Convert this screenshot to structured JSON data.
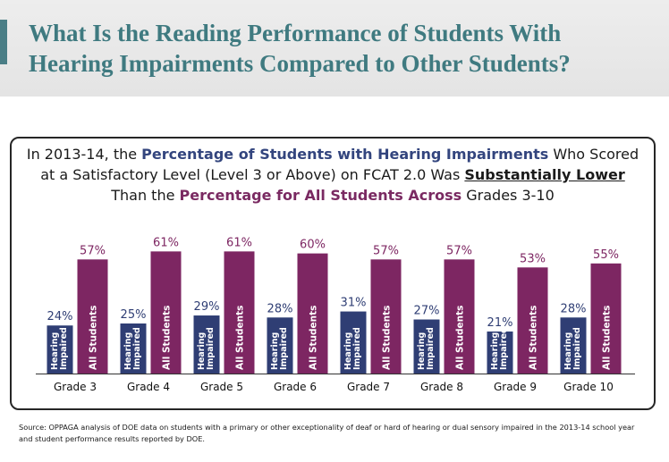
{
  "header": {
    "title_line1": "What Is the Reading Performance of Students With",
    "title_line2": "Hearing Impairments Compared to Other Students?"
  },
  "colors": {
    "hearing_impaired": "#2f3e74",
    "all_students": "#7d2662",
    "title": "#3f7a80"
  },
  "chart_data": {
    "type": "bar",
    "subtitle": {
      "line1_a": "In 2013-14, the ",
      "line1_b": "Percentage of Students with Hearing Impairments",
      "line1_c": " Who Scored",
      "line2_a": "at a Satisfactory Level (Level 3 or Above) on FCAT 2.0 Was ",
      "line2_b": "Substantially Lower",
      "line3_a": "Than the ",
      "line3_b": "Percentage for All Students Across",
      "line3_c": " Grades 3-10"
    },
    "categories": [
      "Grade 3",
      "Grade 4",
      "Grade 5",
      "Grade 6",
      "Grade 7",
      "Grade 8",
      "Grade 9",
      "Grade 10"
    ],
    "series": [
      {
        "name": "Hearing Impaired",
        "label_line1": "Hearing",
        "label_line2": "Impaired",
        "values": [
          24,
          25,
          29,
          28,
          31,
          27,
          21,
          28
        ],
        "value_labels": [
          "24%",
          "25%",
          "29%",
          "28%",
          "31%",
          "27%",
          "21%",
          "28%"
        ]
      },
      {
        "name": "All Students",
        "values": [
          57,
          61,
          61,
          60,
          57,
          57,
          53,
          55
        ],
        "value_labels": [
          "57%",
          "61%",
          "61%",
          "60%",
          "57%",
          "57%",
          "53%",
          "55%"
        ]
      }
    ],
    "ylim": [
      0,
      61
    ]
  },
  "footer": {
    "source_line1": "Source:  OPPAGA analysis of DOE data on students with a primary or other exceptionality of deaf or hard of hearing or dual sensory impaired in the 2013-14 school year",
    "source_line2": "and student performance results reported by DOE."
  }
}
